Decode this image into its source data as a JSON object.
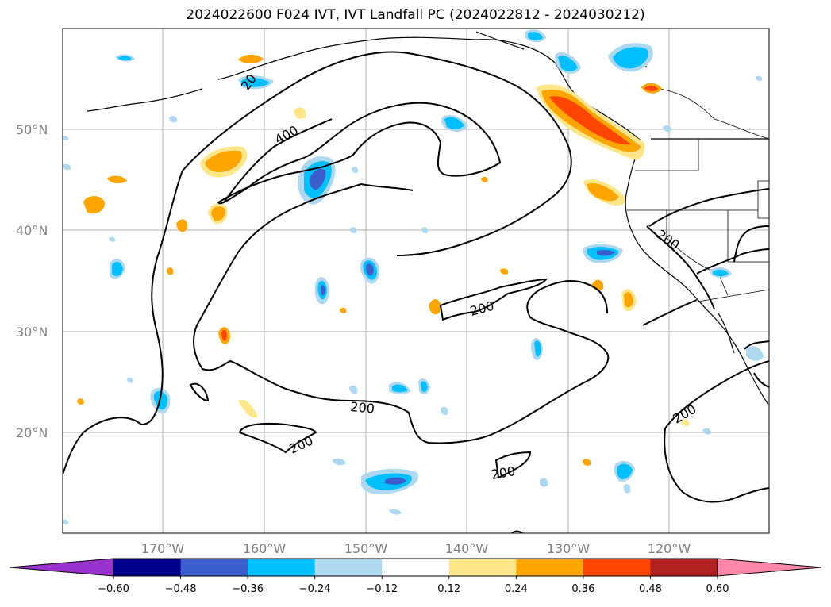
{
  "title": "2024022600 F024 IVT, IVT Landfall PC (2024022812 - 2024030212)",
  "lat_labels": [
    "50°N",
    "40°N",
    "30°N",
    "20°N"
  ],
  "lon_labels": [
    "170°W",
    "160°W",
    "150°W",
    "140°W",
    "130°W",
    "120°W"
  ],
  "contour_labels": [
    "400",
    "200",
    "200",
    "200",
    "200",
    "200",
    "200",
    "20"
  ],
  "colorbar": {
    "ticks": [
      "−0.60",
      "−0.48",
      "−0.36",
      "−0.24",
      "−0.12",
      "0.12",
      "0.24",
      "0.36",
      "0.48",
      "0.60"
    ],
    "colors": [
      "#9932cc",
      "#00008b",
      "#3a5fcd",
      "#00bfff",
      "#add8f0",
      "#ffffff",
      "#ffe68a",
      "#ffa500",
      "#ff4500",
      "#b22222",
      "#ff88aa"
    ]
  }
}
